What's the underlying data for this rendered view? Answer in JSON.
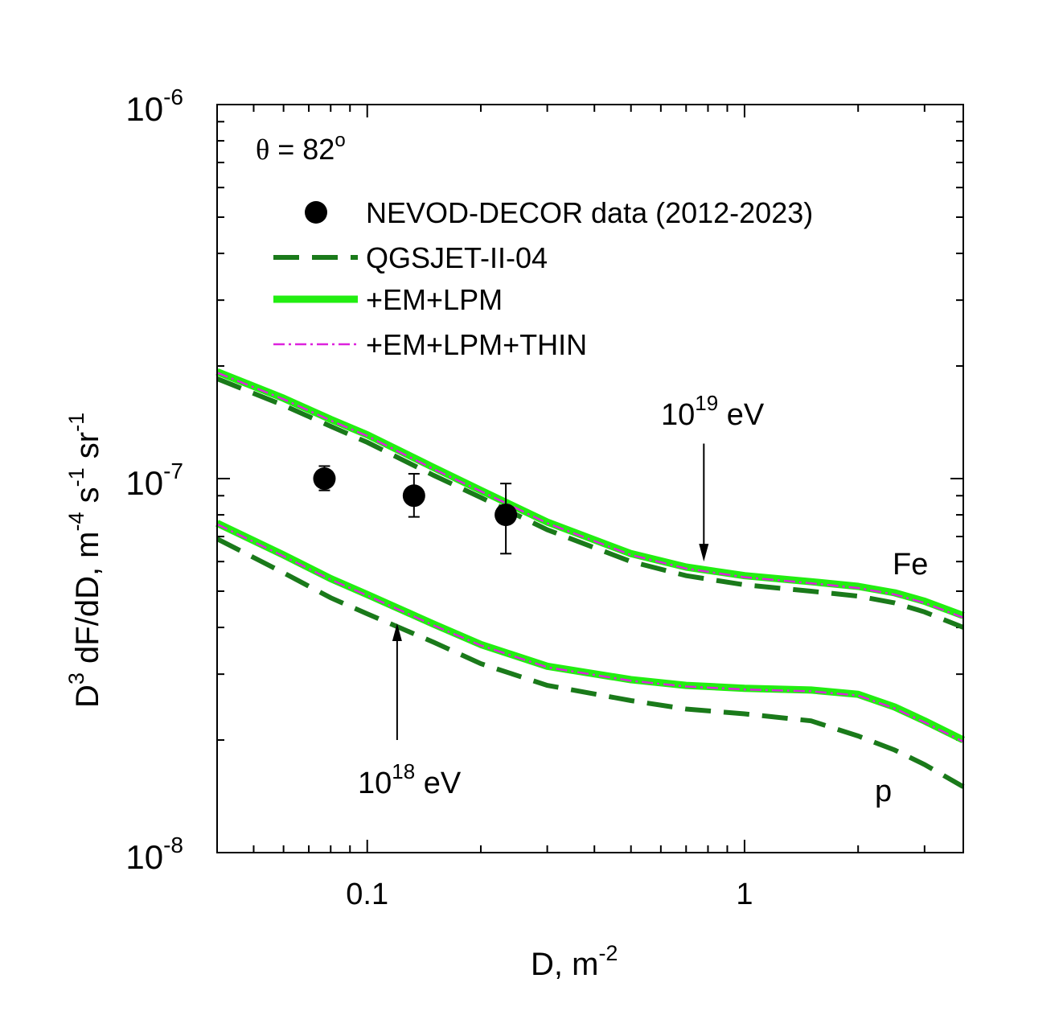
{
  "chart_data": {
    "type": "line",
    "title": "",
    "xlabel_main": "D, m",
    "xlabel_exp": "-2",
    "ylabel_parts": [
      "D",
      "3",
      " dF/dD, m",
      "-4",
      " s",
      "-1",
      " sr",
      "-1"
    ],
    "xscale": "log",
    "yscale": "log",
    "xlim": [
      0.04,
      3.8
    ],
    "ylim": [
      1e-08,
      1e-06
    ],
    "x_ticks": [
      {
        "value": 0.1,
        "label": "0.1"
      },
      {
        "value": 1,
        "label": "1"
      }
    ],
    "y_ticks": [
      {
        "value": 1e-08,
        "base": "10",
        "exp": "-8"
      },
      {
        "value": 1e-07,
        "base": "10",
        "exp": "-7"
      },
      {
        "value": 1e-06,
        "base": "10",
        "exp": "-6"
      }
    ],
    "theta_label": {
      "symbol": "θ",
      "text": " = 82",
      "exp": "o"
    },
    "legend_position": "top-left",
    "legend": [
      {
        "key": "data",
        "label": "NEVOD-DECOR data (2012-2023)"
      },
      {
        "key": "qgsjet",
        "label": "QGSJET-II-04"
      },
      {
        "key": "em_lpm",
        "label": "+EM+LPM"
      },
      {
        "key": "em_lpm_thin",
        "label": "+EM+LPM+THIN"
      }
    ],
    "colors": {
      "data": "#000000",
      "qgsjet": "#1a7a1a",
      "em_lpm": "#22ee11",
      "em_lpm_thin": "#dd22dd"
    },
    "data_points": [
      {
        "x": 0.077,
        "y": 1e-07,
        "yerr_low": 9.3e-08,
        "yerr_high": 1.08e-07
      },
      {
        "x": 0.133,
        "y": 9e-08,
        "yerr_low": 7.9e-08,
        "yerr_high": 1.03e-07
      },
      {
        "x": 0.233,
        "y": 8e-08,
        "yerr_low": 6.3e-08,
        "yerr_high": 9.7e-08
      }
    ],
    "series": [
      {
        "name": "QGSJET-II-04",
        "primary": "Fe",
        "style": "qgsjet",
        "x": [
          0.04,
          0.06,
          0.08,
          0.1,
          0.15,
          0.2,
          0.3,
          0.5,
          0.7,
          1.0,
          1.5,
          2.0,
          2.5,
          3.0,
          3.8
        ],
        "y": [
          1.85e-07,
          1.57e-07,
          1.38e-07,
          1.25e-07,
          1.02e-07,
          8.9e-08,
          7.3e-08,
          6e-08,
          5.5e-08,
          5.2e-08,
          5e-08,
          4.85e-08,
          4.65e-08,
          4.4e-08,
          4e-08
        ]
      },
      {
        "name": "+EM+LPM",
        "primary": "Fe",
        "style": "em_lpm",
        "x": [
          0.04,
          0.06,
          0.08,
          0.1,
          0.15,
          0.2,
          0.3,
          0.5,
          0.7,
          1.0,
          1.5,
          2.0,
          2.5,
          3.0,
          3.8
        ],
        "y": [
          1.93e-07,
          1.64e-07,
          1.44e-07,
          1.31e-07,
          1.07e-07,
          9.3e-08,
          7.65e-08,
          6.3e-08,
          5.8e-08,
          5.5e-08,
          5.3e-08,
          5.15e-08,
          4.95e-08,
          4.7e-08,
          4.3e-08
        ]
      },
      {
        "name": "+EM+LPM+THIN",
        "primary": "Fe",
        "style": "em_lpm_thin",
        "x": [
          0.04,
          0.06,
          0.08,
          0.1,
          0.15,
          0.2,
          0.3,
          0.5,
          0.7,
          1.0,
          1.5,
          2.0,
          2.5,
          3.0,
          3.8
        ],
        "y": [
          1.92e-07,
          1.63e-07,
          1.43e-07,
          1.3e-07,
          1.06e-07,
          9.25e-08,
          7.6e-08,
          6.25e-08,
          5.75e-08,
          5.45e-08,
          5.25e-08,
          5.1e-08,
          4.9e-08,
          4.65e-08,
          4.25e-08
        ]
      },
      {
        "name": "QGSJET-II-04",
        "primary": "p",
        "style": "qgsjet",
        "x": [
          0.04,
          0.06,
          0.08,
          0.1,
          0.15,
          0.2,
          0.3,
          0.5,
          0.7,
          1.0,
          1.5,
          2.0,
          2.5,
          3.0,
          3.8
        ],
        "y": [
          6.9e-08,
          5.6e-08,
          4.8e-08,
          4.35e-08,
          3.65e-08,
          3.2e-08,
          2.8e-08,
          2.55e-08,
          2.42e-08,
          2.35e-08,
          2.25e-08,
          2.05e-08,
          1.88e-08,
          1.72e-08,
          1.5e-08
        ]
      },
      {
        "name": "+EM+LPM",
        "primary": "p",
        "style": "em_lpm",
        "x": [
          0.04,
          0.06,
          0.08,
          0.1,
          0.15,
          0.2,
          0.3,
          0.5,
          0.7,
          1.0,
          1.5,
          2.0,
          2.5,
          3.0,
          3.8
        ],
        "y": [
          7.6e-08,
          6.25e-08,
          5.4e-08,
          4.9e-08,
          4.08e-08,
          3.6e-08,
          3.15e-08,
          2.9e-08,
          2.8e-08,
          2.75e-08,
          2.72e-08,
          2.65e-08,
          2.45e-08,
          2.25e-08,
          2e-08
        ]
      },
      {
        "name": "+EM+LPM+THIN",
        "primary": "p",
        "style": "em_lpm_thin",
        "x": [
          0.04,
          0.06,
          0.08,
          0.1,
          0.15,
          0.2,
          0.3,
          0.5,
          0.7,
          1.0,
          1.5,
          2.0,
          2.5,
          3.0,
          3.8
        ],
        "y": [
          7.55e-08,
          6.2e-08,
          5.37e-08,
          4.87e-08,
          4.05e-08,
          3.58e-08,
          3.13e-08,
          2.88e-08,
          2.78e-08,
          2.73e-08,
          2.7e-08,
          2.63e-08,
          2.43e-08,
          2.23e-08,
          1.98e-08
        ]
      }
    ],
    "annotations": [
      {
        "key": "e19",
        "base": "10",
        "exp": "19",
        "unit": " eV",
        "arrow_x": 0.78,
        "arrow_from_y": 1.24e-07,
        "arrow_to_y": 6e-08
      },
      {
        "key": "e18",
        "base": "10",
        "exp": "18",
        "unit": " eV",
        "arrow_x": 0.12,
        "arrow_from_y": 2e-08,
        "arrow_to_y": 4.1e-08
      },
      {
        "key": "fe",
        "text": "Fe"
      },
      {
        "key": "p",
        "text": "p"
      }
    ]
  }
}
